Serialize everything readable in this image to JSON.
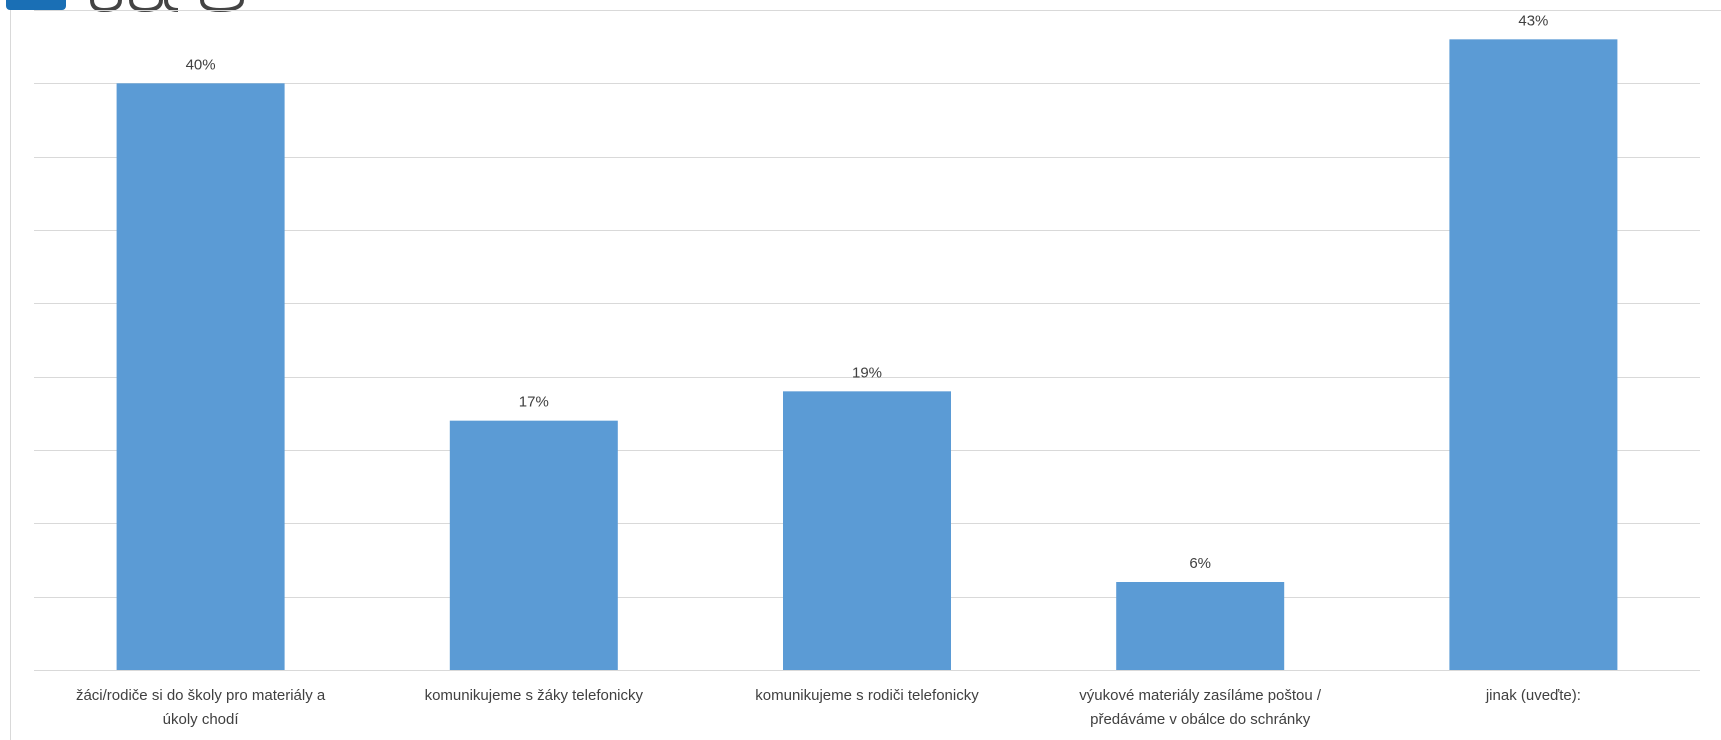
{
  "chart_data": {
    "type": "bar",
    "categories": [
      [
        "žáci/rodiče si do školy pro materiály a",
        "úkoly chodí"
      ],
      [
        "komunikujeme s žáky telefonicky"
      ],
      [
        "komunikujeme s rodiči telefonicky"
      ],
      [
        "výukové materiály zasíláme poštou /",
        "předáváme v obálce do schránky"
      ],
      [
        "jinak (uveďte):"
      ]
    ],
    "values": [
      40,
      17,
      19,
      6,
      43
    ],
    "value_labels": [
      "40%",
      "17%",
      "19%",
      "6%",
      "43%"
    ],
    "ylim": [
      0,
      45
    ],
    "grid": true,
    "bar_color": "#5b9bd5",
    "grid_color": "#d9d9d9",
    "label_color": "#404040"
  },
  "logo": {
    "accent": "#1a6fb5",
    "icon_name": "brand-logo"
  }
}
